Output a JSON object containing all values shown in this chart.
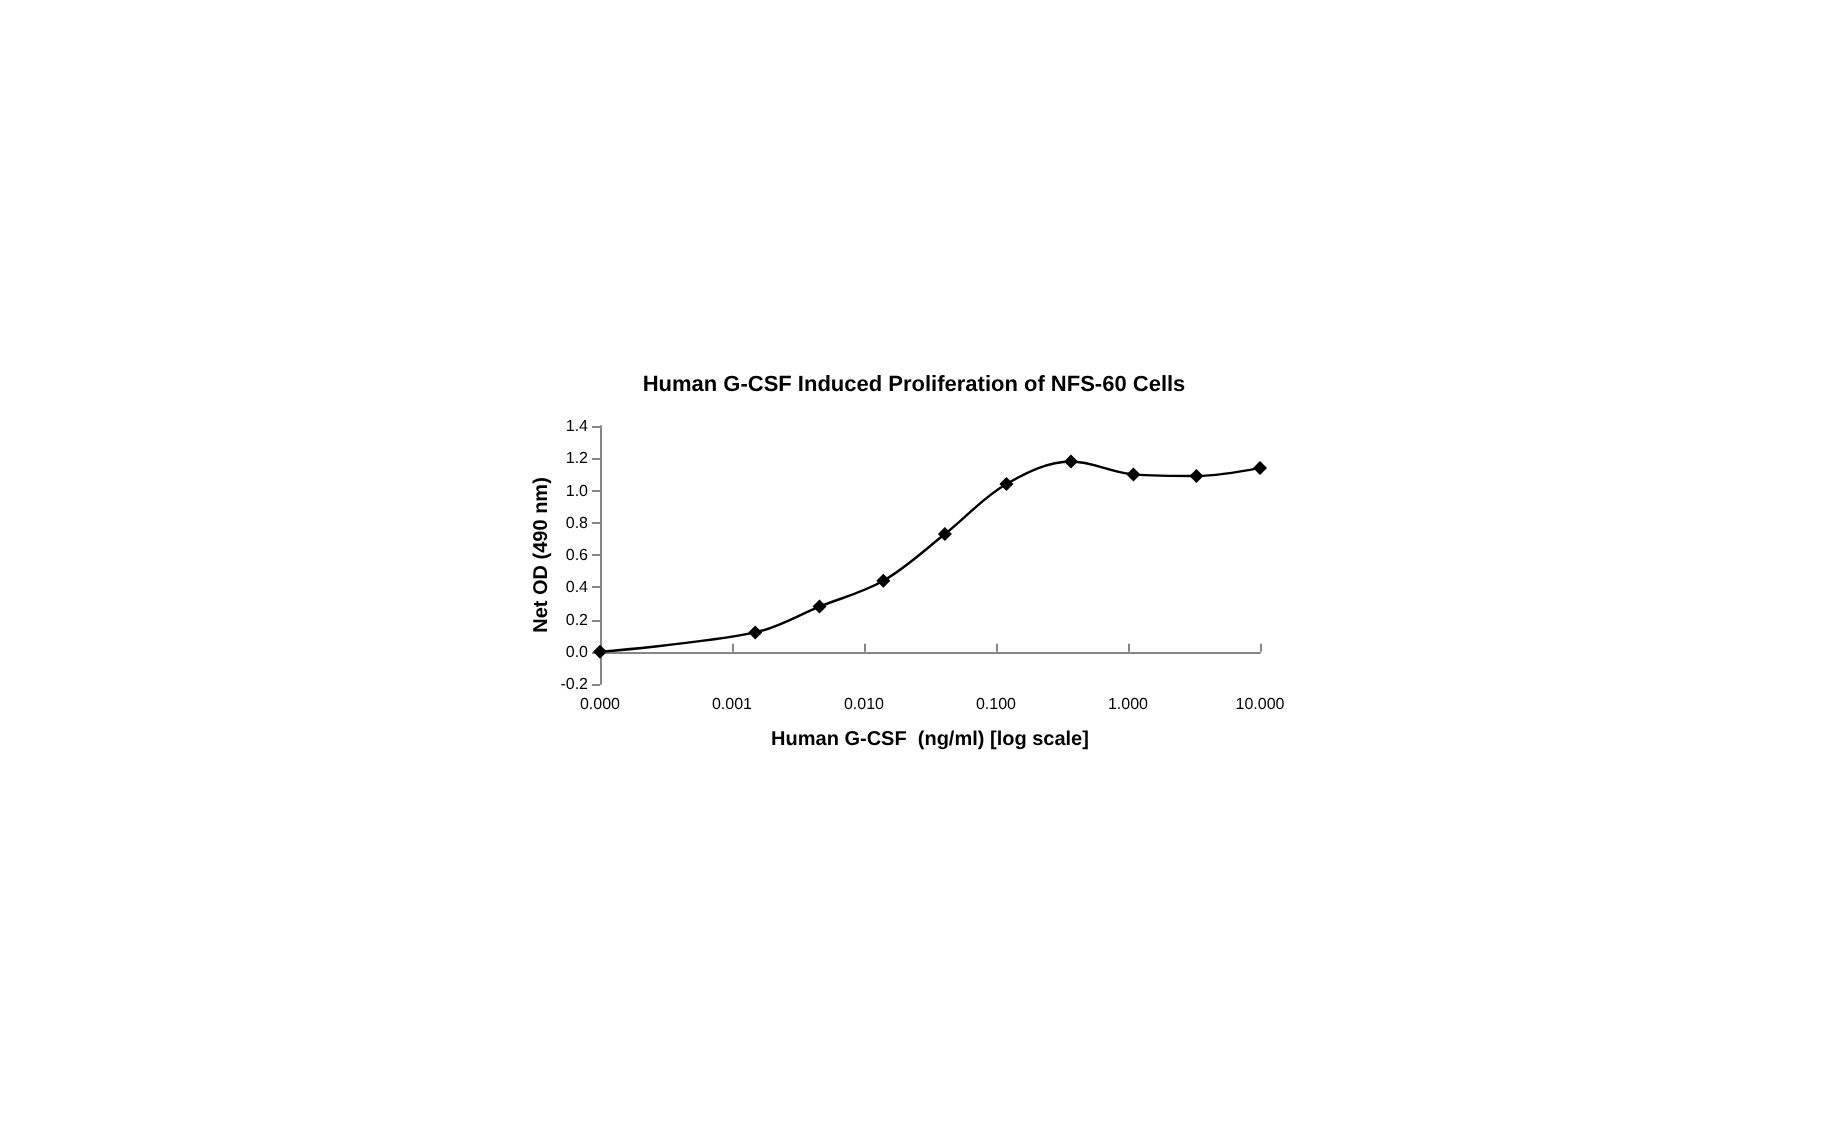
{
  "chart_data": {
    "type": "line",
    "title": "Human G-CSF Induced Proliferation of NFS-60 Cells",
    "xlabel": "Human G-CSF  (ng/ml) [log scale]",
    "ylabel": "Net OD (490 nm)",
    "x": [
      0.0001,
      0.0015,
      0.0046,
      0.014,
      0.041,
      0.12,
      0.37,
      1.1,
      3.3,
      10
    ],
    "series": [
      {
        "color": "#000000",
        "values": [
          0.0,
          0.12,
          0.28,
          0.44,
          0.73,
          1.04,
          1.18,
          1.1,
          1.09,
          1.14
        ]
      }
    ],
    "xlim": [
      0.0001,
      10
    ],
    "xticks": [
      {
        "value": 0.0001,
        "label": "0.000"
      },
      {
        "value": 0.001,
        "label": "0.001"
      },
      {
        "value": 0.01,
        "label": "0.010"
      },
      {
        "value": 0.1,
        "label": "0.100"
      },
      {
        "value": 1,
        "label": "1.000"
      },
      {
        "value": 10,
        "label": "10.000"
      }
    ],
    "ylim": [
      -0.2,
      1.4
    ],
    "yticks": [
      -0.2,
      {
        "value": 0,
        "label": "0.0"
      },
      0.2,
      0.4,
      0.6,
      0.8,
      {
        "value": 1,
        "label": "1.0"
      },
      1.2,
      1.4
    ],
    "log": "x",
    "marker": "diamond",
    "line_style": "solid"
  }
}
